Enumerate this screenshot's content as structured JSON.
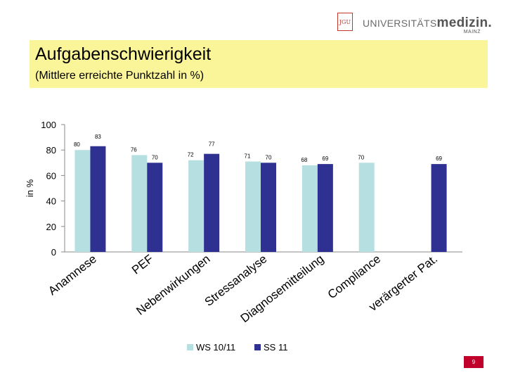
{
  "header": {
    "logo_box_text": "JGU",
    "logo_text_plain": "UNIVERSITÄTS",
    "logo_text_bold": "medizin.",
    "logo_sub": "MAINZ"
  },
  "slide": {
    "title": "Aufgabenschwierigkeit",
    "subtitle": "(Mittlere erreichte Punktzahl in %)",
    "page_number": "9"
  },
  "colors": {
    "title_background": "#fbf59a",
    "ws_series": "#b6dfe2",
    "ss_series": "#2e3191"
  },
  "chart_data": {
    "type": "bar",
    "ylabel": "in %",
    "ylim": [
      0,
      100
    ],
    "yticks": [
      0,
      20,
      40,
      60,
      80,
      100
    ],
    "categories": [
      "Anamnese",
      "PEF",
      "Nebenwirkungen",
      "Stressanalyse",
      "Diagnosemitteilung",
      "Compliance",
      "verärgerter Pat."
    ],
    "series": [
      {
        "name": "WS 10/11",
        "values": [
          80,
          76,
          72,
          71,
          68,
          70,
          null
        ]
      },
      {
        "name": "SS 11",
        "values": [
          83,
          70,
          77,
          70,
          69,
          null,
          69
        ]
      }
    ],
    "legend_position": "bottom",
    "grid": false
  }
}
